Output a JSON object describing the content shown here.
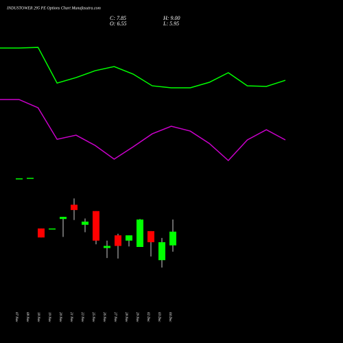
{
  "header": {
    "title": "INDUSTOWER 295 PE Options Chart Munafasutra.com",
    "c": "C: 7.85",
    "o": "O: 6.55",
    "h": "H: 9.00",
    "l": "L: 5.95"
  },
  "chart_data": [
    {
      "type": "line",
      "ylim": [
        -2.7,
        29.8
      ],
      "categories": [
        null,
        null,
        null,
        null,
        null,
        null,
        null,
        null,
        null,
        null,
        null,
        null,
        null,
        null,
        null,
        null
      ],
      "series": [
        {
          "color": "#00ff00",
          "values": [
            25.25,
            25.25,
            25.31,
            21.93,
            22.45,
            23.1,
            23.49,
            22.78,
            21.67,
            21.48,
            21.48,
            22.0,
            22.91,
            21.67,
            21.61,
            22.19
          ]
        },
        {
          "color": "#cc00cc",
          "values": [
            20.37,
            20.37,
            19.59,
            16.6,
            16.99,
            16.02,
            14.72,
            15.89,
            17.12,
            17.84,
            17.38,
            16.21,
            14.59,
            16.54,
            17.51,
            16.54
          ]
        }
      ]
    },
    {
      "type": "candlestick",
      "ylim": [
        -2.7,
        29.8
      ],
      "up_color": "#00ff00",
      "down_color": "#ff0000",
      "categories": [
        "07 Nov",
        "08 Nov",
        "18 Nov",
        "19 Nov",
        "20 Nov",
        "21 Nov",
        "22 Nov",
        "25 Nov",
        "26 Nov",
        "27 Nov",
        "28 Nov",
        "29 Nov",
        "02 Dec",
        "03 Dec",
        "04 Dec"
      ],
      "open": [
        12.9,
        12.95,
        8.15,
        8.15,
        9.05,
        10.4,
        8.5,
        9.8,
        6.3,
        7.5,
        7.0,
        6.4,
        7.9,
        5.15,
        6.55
      ],
      "high": [
        12.9,
        12.95,
        8.15,
        8.15,
        9.25,
        11.0,
        9.1,
        9.8,
        7.0,
        7.65,
        7.5,
        9.05,
        7.9,
        7.25,
        9.0
      ],
      "low": [
        12.9,
        12.95,
        7.3,
        8.15,
        7.35,
        8.95,
        7.8,
        6.65,
        5.35,
        5.3,
        6.45,
        6.4,
        5.5,
        4.45,
        5.95
      ],
      "close": [
        12.9,
        12.95,
        7.3,
        8.15,
        9.25,
        9.9,
        8.8,
        7.0,
        6.5,
        6.5,
        7.5,
        9.0,
        6.85,
        6.85,
        7.85
      ]
    }
  ]
}
